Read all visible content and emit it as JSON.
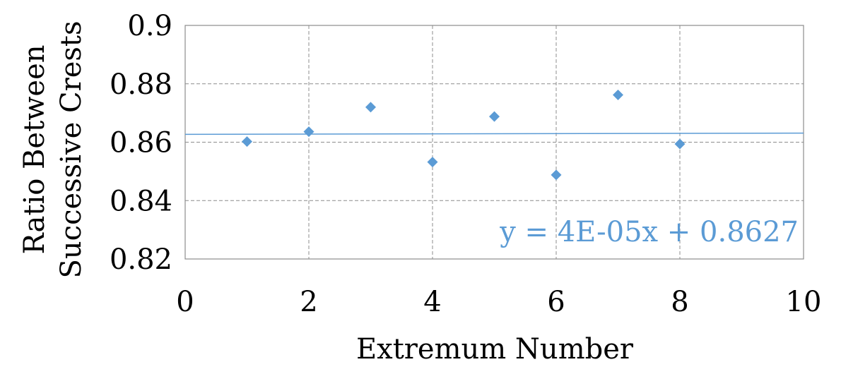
{
  "chart_data": {
    "type": "scatter",
    "xlabel": "Extremum Number",
    "ylabel_lines": [
      "Ratio Between",
      "Successive Crests"
    ],
    "xlim": [
      0,
      10
    ],
    "ylim": [
      0.82,
      0.9
    ],
    "x_ticks": [
      "0",
      "2",
      "4",
      "6",
      "8",
      "10"
    ],
    "y_ticks": [
      "0.82",
      "0.84",
      "0.86",
      "0.88",
      "0.9"
    ],
    "grid": true,
    "series": [
      {
        "x": [
          1,
          2,
          3,
          4,
          5,
          6,
          7,
          8
        ],
        "y": [
          0.8602,
          0.8636,
          0.872,
          0.8532,
          0.8688,
          0.8488,
          0.8762,
          0.8594
        ],
        "color": "#5b9bd5",
        "marker": "diamond"
      }
    ],
    "trendline": {
      "type": "linear",
      "slope": 4e-05,
      "intercept": 0.8627,
      "color": "#5b9bd5",
      "label": "y = 4E-05x + 0.8627"
    }
  }
}
